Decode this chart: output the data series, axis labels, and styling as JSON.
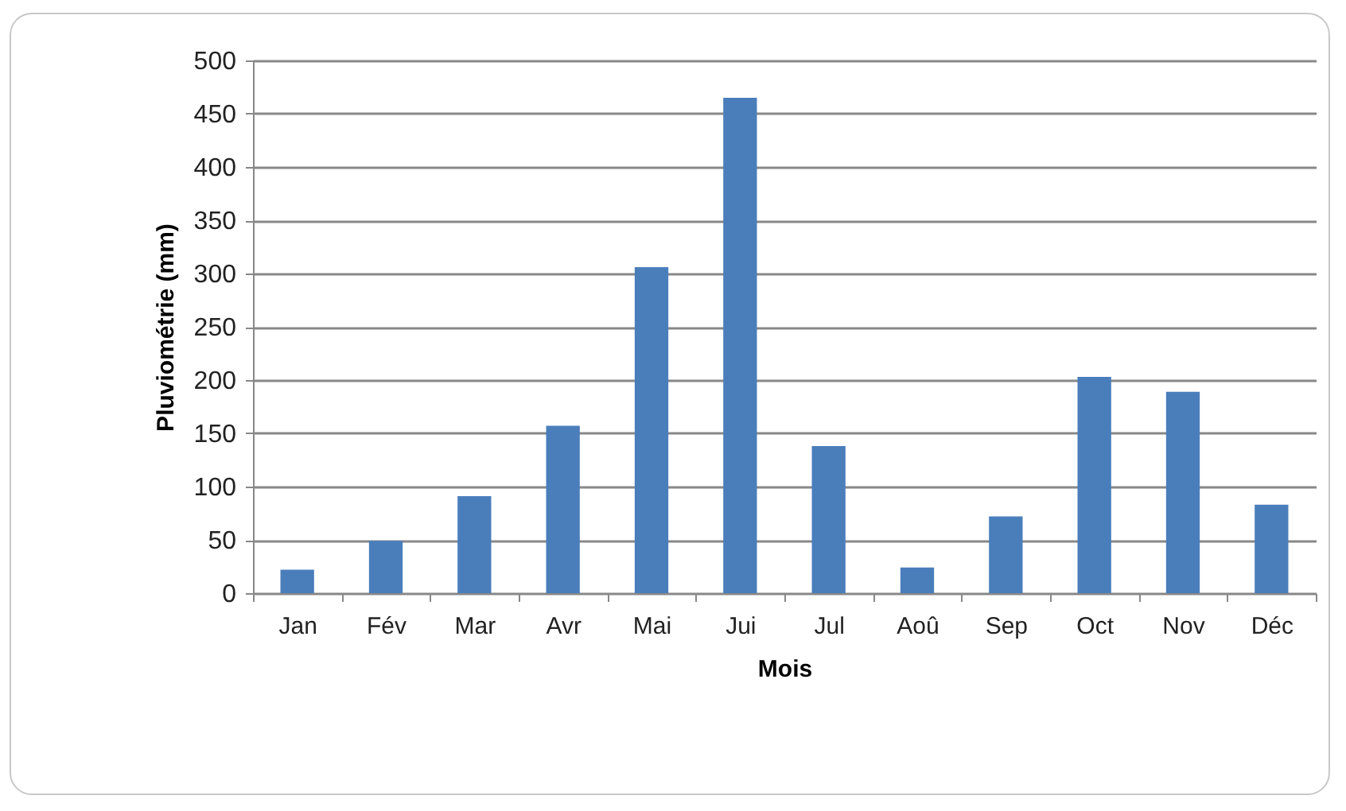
{
  "chart_data": {
    "type": "bar",
    "xlabel": "Mois",
    "ylabel": "Pluviométrie (mm)",
    "categories": [
      "Jan",
      "Fév",
      "Mar",
      "Avr",
      "Mai",
      "Jui",
      "Jul",
      "Aoû",
      "Sep",
      "Oct",
      "Nov",
      "Déc"
    ],
    "values": [
      22,
      49,
      91,
      157,
      306,
      465,
      138,
      24,
      72,
      203,
      189,
      83
    ],
    "color": "#4a7ebb",
    "ylim": [
      0,
      500
    ],
    "yticks": [
      0,
      50,
      100,
      150,
      200,
      250,
      300,
      350,
      400,
      450,
      500
    ],
    "grid": "y"
  }
}
